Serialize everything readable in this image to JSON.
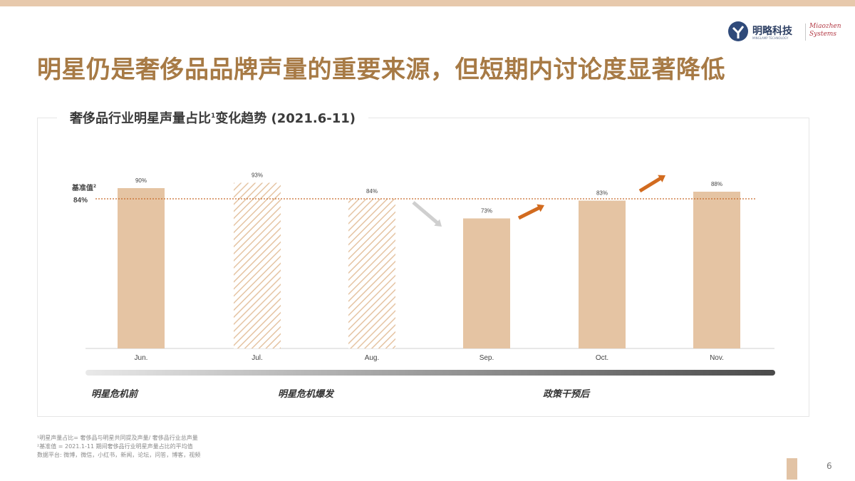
{
  "header": {
    "title": "明星仍是奢侈品品牌声量的重要来源，但短期内讨论度显著降低"
  },
  "logo": {
    "name": "明略科技",
    "tagline": "MINGLAMP TECHNOLOGY",
    "alt_brand": "Miaozhen Systems"
  },
  "panel": {
    "title": "奢侈品行业明星声量占比",
    "title_sup": "1",
    "title_suffix": "变化趋势 (2021.6-11)"
  },
  "chart_data": {
    "type": "bar",
    "categories": [
      "Jun.",
      "Jul.",
      "Aug.",
      "Sep.",
      "Oct.",
      "Nov."
    ],
    "values": [
      90,
      93,
      84,
      73,
      83,
      88
    ],
    "value_labels": [
      "90%",
      "93%",
      "84%",
      "73%",
      "83%",
      "88%"
    ],
    "bar_styles": [
      "solid",
      "hatched",
      "hatched",
      "solid",
      "solid",
      "solid"
    ],
    "baseline": {
      "label": "基准值",
      "label_sup": "2",
      "value": 84,
      "value_label": "84%"
    },
    "ylim": [
      0,
      100
    ],
    "grid": false,
    "trend_arrows": [
      {
        "between": [
          "Aug.",
          "Sep."
        ],
        "direction": "down",
        "color": "#cfcfcf"
      },
      {
        "between": [
          "Sep.",
          "Oct."
        ],
        "direction": "up",
        "color": "#d26b1f"
      },
      {
        "between": [
          "Oct.",
          "Nov."
        ],
        "direction": "up",
        "color": "#d26b1f"
      }
    ],
    "colors": {
      "bar": "#e5c4a3",
      "hatch": "#e5c4a3",
      "baseline": "#c76a2a",
      "axis": "#d0d0d0"
    }
  },
  "phases": [
    {
      "label": "明星危机前"
    },
    {
      "label": "明星危机爆发"
    },
    {
      "label": "政策干预后"
    }
  ],
  "footnotes": [
    "¹明星声量占比= 奢侈品与明星共同提及声量/ 奢侈品行业总声量",
    "²基准值 = 2021.1-11 期间奢侈品行业明星声量占比的平均值",
    "数据平台: 微博，微信，小红书，新闻，论坛，问答，博客，视频"
  ],
  "page": {
    "number": "6"
  }
}
